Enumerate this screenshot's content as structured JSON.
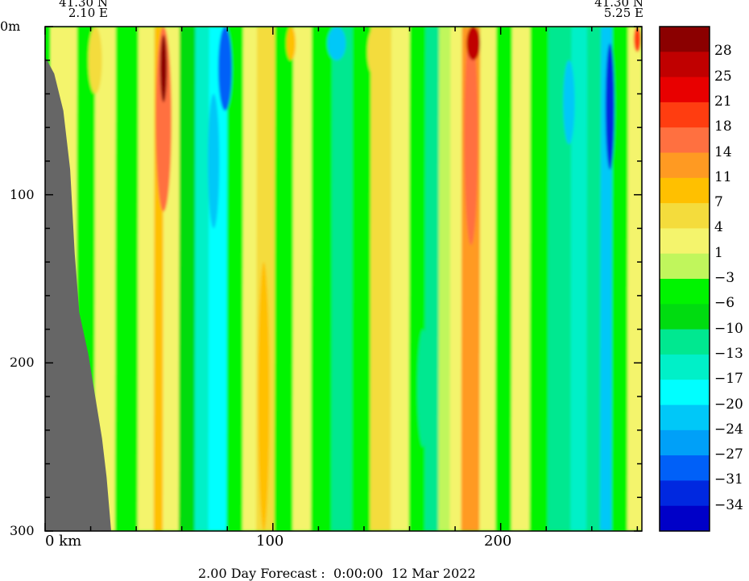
{
  "chart_data": {
    "type": "heatmap",
    "title": "2.00 Day Forecast :  0:00:00  12 Mar 2022",
    "left_coordinate": [
      "41.30 N",
      "2.10 E"
    ],
    "right_coordinate": [
      "41.30 N",
      "5.25 E"
    ],
    "xlabel": "km",
    "ylabel": "",
    "x_ticks": [
      "0 km",
      "100",
      "200"
    ],
    "y_ticks": [
      "0m",
      "100",
      "200",
      "300"
    ],
    "xlim": [
      0,
      262
    ],
    "ylim": [
      0,
      300
    ],
    "y_inverted": true,
    "colorbar": {
      "labels": [
        "28",
        "25",
        "21",
        "18",
        "14",
        "11",
        "7",
        "4",
        "1",
        "-3",
        "-6",
        "-10",
        "-13",
        "-17",
        "-20",
        "-24",
        "-27",
        "-31",
        "-34"
      ],
      "colors": [
        "#8b0000",
        "#c00000",
        "#e80000",
        "#ff3d10",
        "#ff7040",
        "#ff9a22",
        "#ffc000",
        "#f4dc3c",
        "#f4f46c",
        "#c0f65c",
        "#00f400",
        "#00dc10",
        "#00e890",
        "#00f0c8",
        "#00ffff",
        "#00c8f8",
        "#00a0f8",
        "#0060f8",
        "#0028e0",
        "#0000c8"
      ]
    },
    "bands": [
      {
        "x": 2,
        "w": 12,
        "value": 3
      },
      {
        "x": 14,
        "w": 8,
        "value": -4
      },
      {
        "x": 22,
        "w": 9,
        "value": 2
      },
      {
        "x": 31,
        "w": 10,
        "value": -6
      },
      {
        "x": 41,
        "w": 7,
        "value": 1
      },
      {
        "x": 48,
        "w": 4,
        "value": 10
      },
      {
        "x": 52,
        "w": 7,
        "value": 2
      },
      {
        "x": 59,
        "w": 7,
        "value": -10
      },
      {
        "x": 66,
        "w": 6,
        "value": -17
      },
      {
        "x": 72,
        "w": 8,
        "value": -20
      },
      {
        "x": 80,
        "w": 7,
        "value": -5
      },
      {
        "x": 87,
        "w": 6,
        "value": 1
      },
      {
        "x": 93,
        "w": 8,
        "value": 5
      },
      {
        "x": 101,
        "w": 8,
        "value": -6
      },
      {
        "x": 109,
        "w": 8,
        "value": 2
      },
      {
        "x": 117,
        "w": 9,
        "value": -5
      },
      {
        "x": 126,
        "w": 9,
        "value": -12
      },
      {
        "x": 135,
        "w": 8,
        "value": -6
      },
      {
        "x": 143,
        "w": 9,
        "value": 4
      },
      {
        "x": 152,
        "w": 8,
        "value": 1
      },
      {
        "x": 160,
        "w": 7,
        "value": -6
      },
      {
        "x": 167,
        "w": 6,
        "value": -12
      },
      {
        "x": 173,
        "w": 5,
        "value": -3
      },
      {
        "x": 178,
        "w": 5,
        "value": 2
      },
      {
        "x": 183,
        "w": 8,
        "value": 12
      },
      {
        "x": 191,
        "w": 7,
        "value": 3
      },
      {
        "x": 198,
        "w": 7,
        "value": -6
      },
      {
        "x": 205,
        "w": 8,
        "value": 1
      },
      {
        "x": 213,
        "w": 8,
        "value": -5
      },
      {
        "x": 221,
        "w": 10,
        "value": -12
      },
      {
        "x": 231,
        "w": 7,
        "value": -17
      },
      {
        "x": 238,
        "w": 6,
        "value": -13
      },
      {
        "x": 244,
        "w": 5,
        "value": -22
      },
      {
        "x": 249,
        "w": 7,
        "value": -6
      },
      {
        "x": 256,
        "w": 6,
        "value": 3
      }
    ],
    "cores": [
      {
        "x": 52,
        "d0": 0,
        "d1": 110,
        "w": 7,
        "value": 14
      },
      {
        "x": 52,
        "d0": 5,
        "d1": 45,
        "w": 3,
        "value": 28
      },
      {
        "x": 79,
        "d0": 0,
        "d1": 50,
        "w": 6,
        "value": -28
      },
      {
        "x": 248,
        "d0": 10,
        "d1": 85,
        "w": 4,
        "value": -34
      },
      {
        "x": 187,
        "d0": 0,
        "d1": 130,
        "w": 6,
        "value": 16
      },
      {
        "x": 186,
        "d0": 185,
        "d1": 240,
        "w": 4,
        "value": 12
      },
      {
        "x": 188,
        "d0": 0,
        "d1": 20,
        "w": 6,
        "value": 27
      },
      {
        "x": 260,
        "d0": 0,
        "d1": 15,
        "w": 3,
        "value": 18
      },
      {
        "x": 74,
        "d0": 40,
        "d1": 120,
        "w": 5,
        "value": -24
      },
      {
        "x": 230,
        "d0": 20,
        "d1": 70,
        "w": 5,
        "value": -24
      },
      {
        "x": 128,
        "d0": 0,
        "d1": 20,
        "w": 8,
        "value": -24
      },
      {
        "x": 96,
        "d0": 140,
        "d1": 300,
        "w": 5,
        "value": 7
      },
      {
        "x": 145,
        "d0": 0,
        "d1": 30,
        "w": 7,
        "value": 6
      },
      {
        "x": 166,
        "d0": 180,
        "d1": 250,
        "w": 5,
        "value": -13
      },
      {
        "x": 108,
        "d0": 0,
        "d1": 20,
        "w": 4,
        "value": 9
      },
      {
        "x": 22,
        "d0": 0,
        "d1": 40,
        "w": 6,
        "value": 5
      }
    ],
    "bathymetry": [
      [
        0,
        18
      ],
      [
        4,
        28
      ],
      [
        8,
        50
      ],
      [
        11,
        85
      ],
      [
        13,
        135
      ],
      [
        15,
        170
      ],
      [
        19,
        195
      ],
      [
        22,
        220
      ],
      [
        25,
        245
      ],
      [
        27,
        268
      ],
      [
        29,
        300
      ]
    ]
  }
}
